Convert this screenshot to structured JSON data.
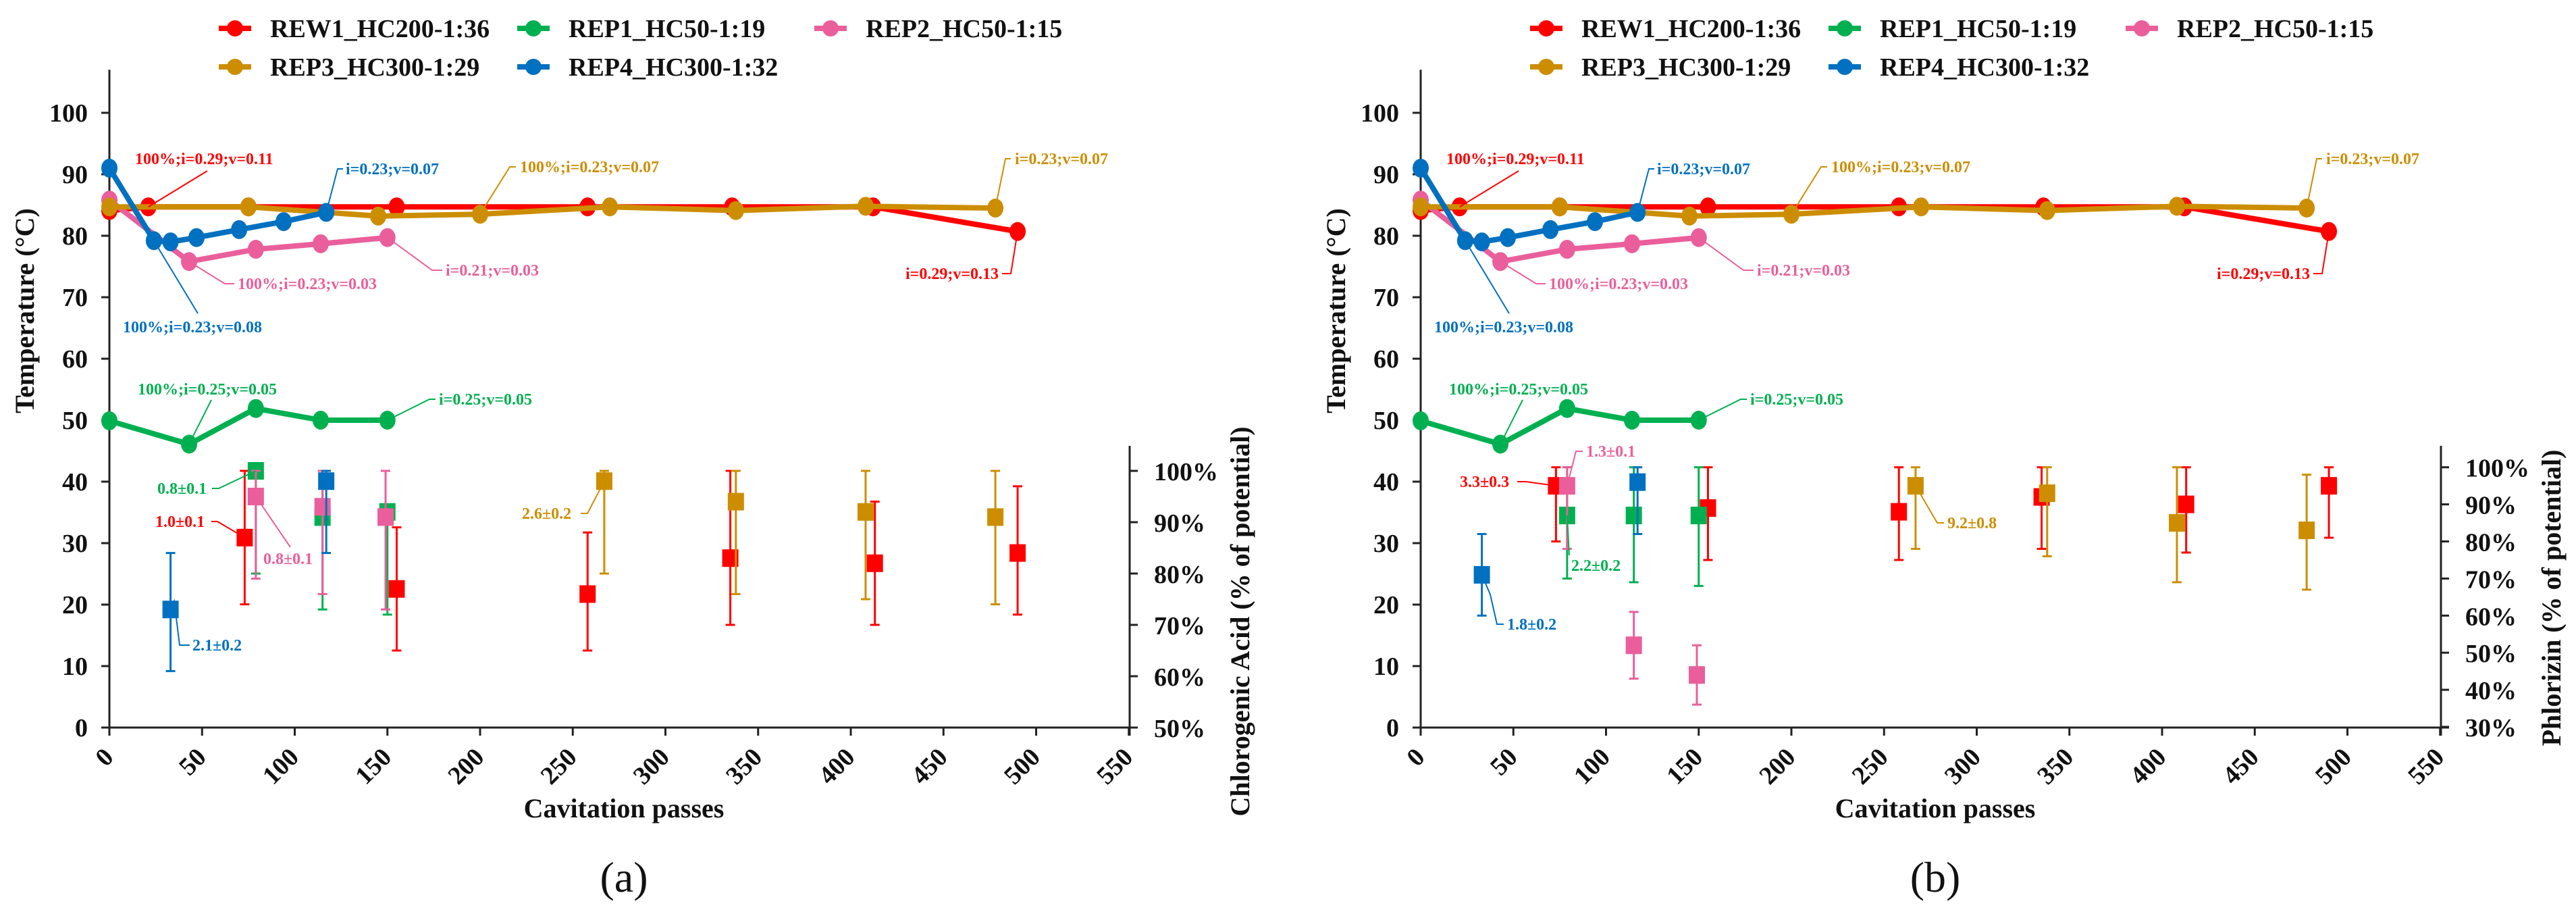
{
  "legend": [
    {
      "name": "REW1_HC200-1:36",
      "color": "#ff0000"
    },
    {
      "name": "REP1_HC50-1:19",
      "color": "#00b050"
    },
    {
      "name": "REP2_HC50-1:15",
      "color": "#ea5f9b"
    },
    {
      "name": "REP3_HC300-1:29",
      "color": "#cc8e00"
    },
    {
      "name": "REP4_HC300-1:32",
      "color": "#0070c0"
    }
  ],
  "chart_data": [
    {
      "type": "line+scatter",
      "panel_label": "(a)",
      "xlabel": "Cavitation passes",
      "ylabel": "Temperature (°C)",
      "y2label": "Chlorogenic Acid (% of potential)",
      "xlim": [
        0,
        550
      ],
      "xticks": [
        "0",
        "50",
        "100",
        "150",
        "200",
        "250",
        "300",
        "350",
        "400",
        "450",
        "500",
        "550"
      ],
      "ylim": [
        0,
        100
      ],
      "yticks": [
        "0",
        "10",
        "20",
        "30",
        "40",
        "50",
        "60",
        "70",
        "80",
        "90",
        "100"
      ],
      "y2lim": [
        50,
        100
      ],
      "y2ticks": [
        "50%",
        "60%",
        "70%",
        "80%",
        "90%",
        "100%"
      ],
      "temperature_series": [
        {
          "name": "REW1_HC200-1:36",
          "x": [
            0,
            21,
            75,
            155,
            258,
            336,
            412,
            490
          ],
          "y": [
            84.1,
            84.7,
            84.7,
            84.7,
            84.7,
            84.7,
            84.7,
            80.7
          ]
        },
        {
          "name": "REP1_HC50-1:19",
          "x": [
            0,
            43,
            79,
            114,
            150
          ],
          "y": [
            49.9,
            46.1,
            51.9,
            50,
            50
          ]
        },
        {
          "name": "REP2_HC50-1:15",
          "x": [
            0,
            43,
            79,
            114,
            150
          ],
          "y": [
            85.8,
            75.8,
            77.8,
            78.7,
            79.7
          ]
        },
        {
          "name": "REP3_HC300-1:29",
          "x": [
            0,
            75,
            145,
            200,
            270,
            338,
            408,
            478
          ],
          "y": [
            84.7,
            84.7,
            83.2,
            83.5,
            84.7,
            84.1,
            84.8,
            84.5
          ]
        },
        {
          "name": "REP4_HC300-1:32",
          "x": [
            0,
            24,
            33,
            47,
            70,
            94,
            117
          ],
          "y": [
            91,
            79.2,
            79,
            79.7,
            81,
            82.3,
            83.8
          ]
        }
      ],
      "concentration_series": [
        {
          "name": "REW1_HC200-1:36",
          "x": [
            73,
            155,
            258,
            335,
            413,
            490
          ],
          "y": [
            87,
            77,
            76,
            83,
            82,
            84
          ],
          "err_low": [
            74,
            65,
            65,
            70,
            70,
            72
          ],
          "err_high": [
            100,
            89,
            88,
            100,
            94,
            97
          ]
        },
        {
          "name": "REP1_HC50-1:19",
          "x": [
            79,
            115,
            150
          ],
          "y": [
            100,
            91,
            92
          ],
          "err_low": [
            80,
            73,
            72
          ],
          "err_high": [
            100,
            100,
            92
          ]
        },
        {
          "name": "REP2_HC50-1:15",
          "x": [
            79,
            115,
            149
          ],
          "y": [
            95,
            93,
            91
          ],
          "err_low": [
            79,
            76,
            73
          ],
          "err_high": [
            100,
            100,
            100
          ]
        },
        {
          "name": "REP3_HC300-1:29",
          "x": [
            267,
            338,
            408,
            478
          ],
          "y": [
            98,
            94,
            92,
            91
          ],
          "err_low": [
            80,
            76,
            75,
            74
          ],
          "err_high": [
            100,
            100,
            100,
            100
          ]
        },
        {
          "name": "REP4_HC300-1:32",
          "x": [
            33,
            117
          ],
          "y": [
            73,
            98
          ],
          "err_low": [
            61,
            84
          ],
          "err_high": [
            84,
            100
          ]
        }
      ],
      "temperature_annotations": [
        {
          "series": 0,
          "text": "100%;i=0.29;v=0.11"
        },
        {
          "series": 4,
          "text": "i=0.23;v=0.07"
        },
        {
          "series": 3,
          "text": "100%;i=0.23;v=0.07"
        },
        {
          "series": 3,
          "text": "i=0.23;v=0.07"
        },
        {
          "series": 2,
          "text": "i=0.21;v=0.03"
        },
        {
          "series": 2,
          "text": "100%;i=0.23;v=0.03"
        },
        {
          "series": 0,
          "text": "i=0.29;v=0.13"
        },
        {
          "series": 4,
          "text": "100%;i=0.23;v=0.08"
        },
        {
          "series": 1,
          "text": "100%;i=0.25;v=0.05"
        },
        {
          "series": 1,
          "text": "i=0.25;v=0.05"
        }
      ],
      "concentration_annotations": [
        {
          "series": 1,
          "text": "0.8±0.1"
        },
        {
          "series": 0,
          "text": "1.0±0.1"
        },
        {
          "series": 2,
          "text": "0.8±0.1"
        },
        {
          "series": 3,
          "text": "2.6±0.2"
        },
        {
          "series": 4,
          "text": "2.1±0.2"
        }
      ]
    },
    {
      "type": "line+scatter",
      "panel_label": "(b)",
      "xlabel": "Cavitation passes",
      "ylabel": "Temperature (°C)",
      "y2label": "Phlorizin (% of potential)",
      "xlim": [
        0,
        550
      ],
      "xticks": [
        "0",
        "50",
        "100",
        "150",
        "200",
        "250",
        "300",
        "350",
        "400",
        "450",
        "500",
        "550"
      ],
      "ylim": [
        0,
        100
      ],
      "yticks": [
        "0",
        "10",
        "20",
        "30",
        "40",
        "50",
        "60",
        "70",
        "80",
        "90",
        "100"
      ],
      "y2lim": [
        30,
        100
      ],
      "y2ticks": [
        "30%",
        "40%",
        "50%",
        "60%",
        "70%",
        "80%",
        "90%",
        "100%"
      ],
      "temperature_series": [
        {
          "name": "REW1_HC200-1:36",
          "x": [
            0,
            21,
            75,
            155,
            258,
            336,
            412,
            490
          ],
          "y": [
            84.1,
            84.7,
            84.7,
            84.7,
            84.7,
            84.7,
            84.7,
            80.7
          ]
        },
        {
          "name": "REP1_HC50-1:19",
          "x": [
            0,
            43,
            79,
            114,
            150
          ],
          "y": [
            49.9,
            46.1,
            51.9,
            50,
            50
          ]
        },
        {
          "name": "REP2_HC50-1:15",
          "x": [
            0,
            43,
            79,
            114,
            150
          ],
          "y": [
            85.8,
            75.8,
            77.8,
            78.7,
            79.7
          ]
        },
        {
          "name": "REP3_HC300-1:29",
          "x": [
            0,
            75,
            145,
            200,
            270,
            338,
            408,
            478
          ],
          "y": [
            84.7,
            84.7,
            83.2,
            83.5,
            84.7,
            84.1,
            84.8,
            84.5
          ]
        },
        {
          "name": "REP4_HC300-1:32",
          "x": [
            0,
            24,
            33,
            47,
            70,
            94,
            117
          ],
          "y": [
            91,
            79.2,
            79,
            79.7,
            81,
            82.3,
            83.8
          ]
        }
      ],
      "concentration_series": [
        {
          "name": "REW1_HC200-1:36",
          "x": [
            73,
            155,
            258,
            335,
            413,
            490
          ],
          "y": [
            95,
            89,
            88,
            92,
            90,
            95
          ],
          "err_low": [
            80,
            75,
            75,
            78,
            77,
            81
          ],
          "err_high": [
            100,
            100,
            100,
            100,
            100,
            100
          ]
        },
        {
          "name": "REP1_HC50-1:19",
          "x": [
            79,
            115,
            150
          ],
          "y": [
            87,
            87,
            87
          ],
          "err_low": [
            70,
            69,
            68
          ],
          "err_high": [
            100,
            100,
            100
          ]
        },
        {
          "name": "REP2_HC50-1:15",
          "x": [
            79,
            115,
            149
          ],
          "y": [
            95,
            52,
            44
          ],
          "err_low": [
            78,
            43,
            36
          ],
          "err_high": [
            100,
            61,
            52
          ]
        },
        {
          "name": "REP3_HC300-1:29",
          "x": [
            267,
            338,
            408,
            478
          ],
          "y": [
            95,
            93,
            85,
            83
          ],
          "err_low": [
            78,
            76,
            69,
            67
          ],
          "err_high": [
            100,
            100,
            100,
            98
          ]
        },
        {
          "name": "REP4_HC300-1:32",
          "x": [
            33,
            117
          ],
          "y": [
            71,
            96
          ],
          "err_low": [
            60,
            82
          ],
          "err_high": [
            82,
            100
          ]
        }
      ],
      "temperature_annotations": [
        {
          "series": 0,
          "text": "100%;i=0.29;v=0.11"
        },
        {
          "series": 4,
          "text": "i=0.23;v=0.07"
        },
        {
          "series": 3,
          "text": "100%;i=0.23;v=0.07"
        },
        {
          "series": 3,
          "text": "i=0.23;v=0.07"
        },
        {
          "series": 2,
          "text": "i=0.21;v=0.03"
        },
        {
          "series": 2,
          "text": "100%;i=0.23;v=0.03"
        },
        {
          "series": 0,
          "text": "i=0.29;v=0.13"
        },
        {
          "series": 4,
          "text": "100%;i=0.23;v=0.08"
        },
        {
          "series": 1,
          "text": "100%;i=0.25;v=0.05"
        },
        {
          "series": 1,
          "text": "i=0.25;v=0.05"
        }
      ],
      "concentration_annotations": [
        {
          "series": 0,
          "text": "3.3±0.3"
        },
        {
          "series": 2,
          "text": "1.3±0.1"
        },
        {
          "series": 1,
          "text": "2.2±0.2"
        },
        {
          "series": 3,
          "text": "9.2±0.8"
        },
        {
          "series": 4,
          "text": "1.8±0.2"
        }
      ]
    }
  ]
}
